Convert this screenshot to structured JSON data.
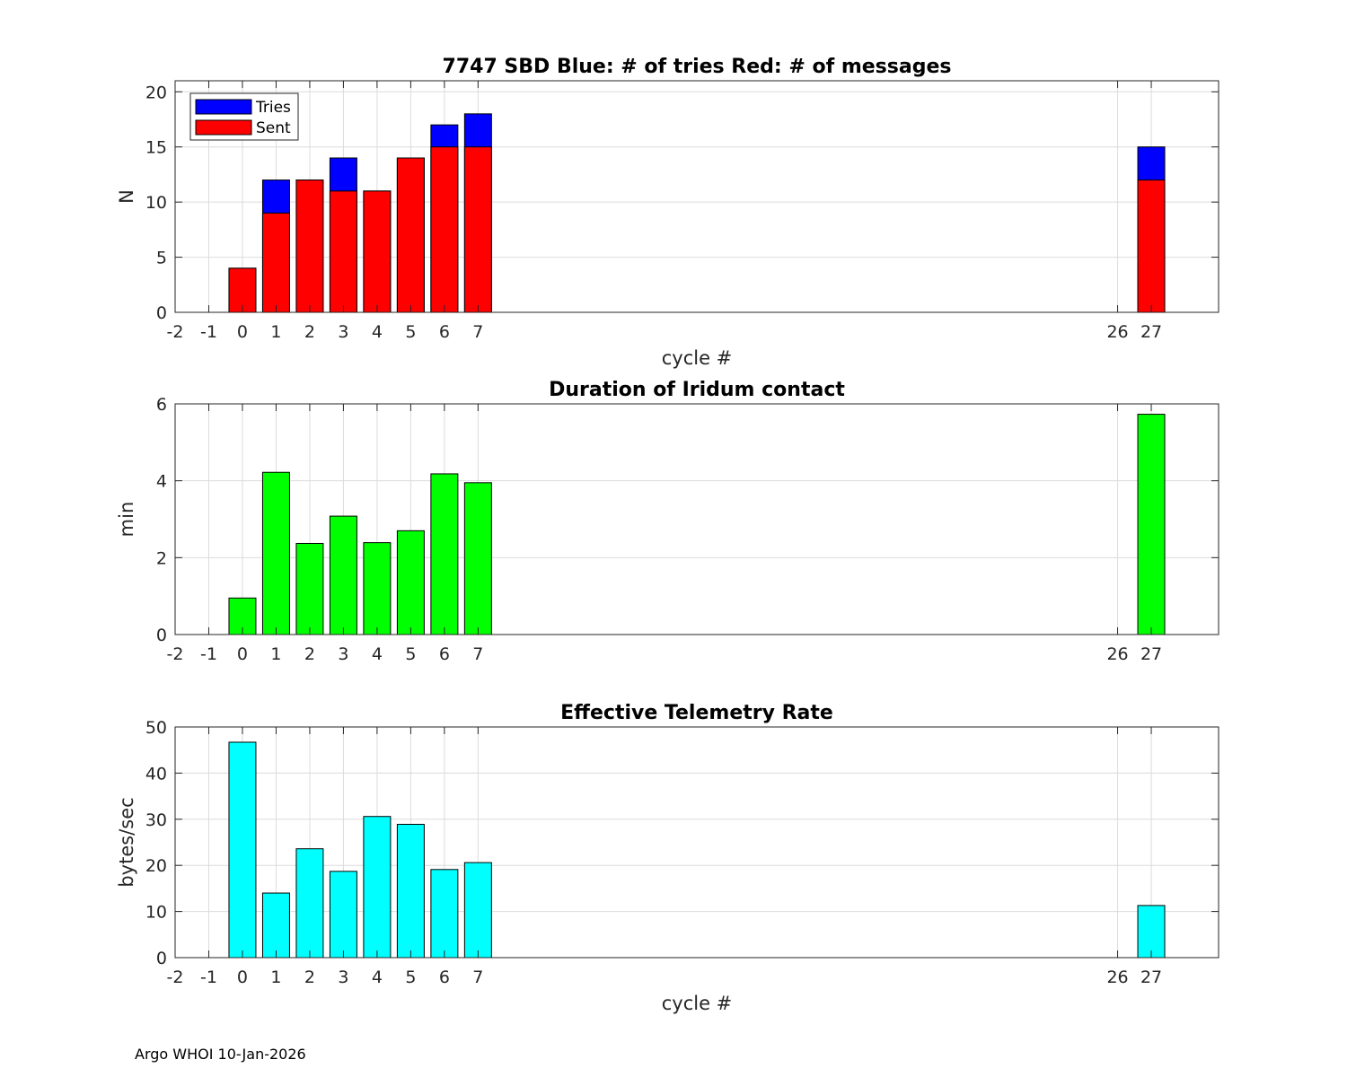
{
  "colors": {
    "tries": "#0000ff",
    "sent": "#ff0000",
    "duration": "#00ff00",
    "rate": "#00ffff",
    "grid": "#dcdcdc",
    "axis": "#262626"
  },
  "chart_data": [
    {
      "type": "bar",
      "title": "7747 SBD  Blue: # of tries   Red: # of messages",
      "xlabel": "cycle #",
      "ylabel": "N",
      "xlim": [
        -2,
        29
      ],
      "ylim": [
        0,
        21
      ],
      "xticks": [
        -2,
        -1,
        0,
        1,
        2,
        3,
        4,
        5,
        6,
        7,
        26,
        27
      ],
      "yticks": [
        0,
        5,
        10,
        15,
        20
      ],
      "grid": true,
      "legend": {
        "location": "top-left",
        "entries": [
          "Tries",
          "Sent"
        ]
      },
      "x": [
        0,
        1,
        2,
        3,
        4,
        5,
        6,
        7,
        27
      ],
      "series": [
        {
          "name": "Tries",
          "color": "#0000ff",
          "values": [
            4,
            12,
            12,
            14,
            11,
            14,
            17,
            18,
            15
          ]
        },
        {
          "name": "Sent",
          "color": "#ff0000",
          "values": [
            4,
            9,
            12,
            11,
            11,
            14,
            15,
            15,
            12
          ]
        }
      ]
    },
    {
      "type": "bar",
      "title": "Duration of Iridum contact",
      "xlabel": "",
      "ylabel": "min",
      "xlim": [
        -2,
        29
      ],
      "ylim": [
        0,
        6
      ],
      "xticks": [
        -2,
        -1,
        0,
        1,
        2,
        3,
        4,
        5,
        6,
        7,
        26,
        27
      ],
      "yticks": [
        0,
        2,
        4,
        6
      ],
      "grid": true,
      "x": [
        0,
        1,
        2,
        3,
        4,
        5,
        6,
        7,
        27
      ],
      "series": [
        {
          "name": "Duration",
          "color": "#00ff00",
          "values": [
            0.95,
            4.22,
            2.37,
            3.08,
            2.39,
            2.7,
            4.18,
            3.95,
            5.73
          ]
        }
      ]
    },
    {
      "type": "bar",
      "title": "Effective Telemetry Rate",
      "xlabel": "cycle #",
      "ylabel": "bytes/sec",
      "xlim": [
        -2,
        29
      ],
      "ylim": [
        0,
        50
      ],
      "xticks": [
        -2,
        -1,
        0,
        1,
        2,
        3,
        4,
        5,
        6,
        7,
        26,
        27
      ],
      "yticks": [
        0,
        10,
        20,
        30,
        40,
        50
      ],
      "grid": true,
      "x": [
        0,
        1,
        2,
        3,
        4,
        5,
        6,
        7,
        27
      ],
      "series": [
        {
          "name": "Rate",
          "color": "#00ffff",
          "values": [
            46.7,
            14.0,
            23.6,
            18.7,
            30.6,
            28.9,
            19.1,
            20.6,
            11.3
          ]
        }
      ]
    }
  ],
  "footer": "Argo WHOI 10-Jan-2026"
}
